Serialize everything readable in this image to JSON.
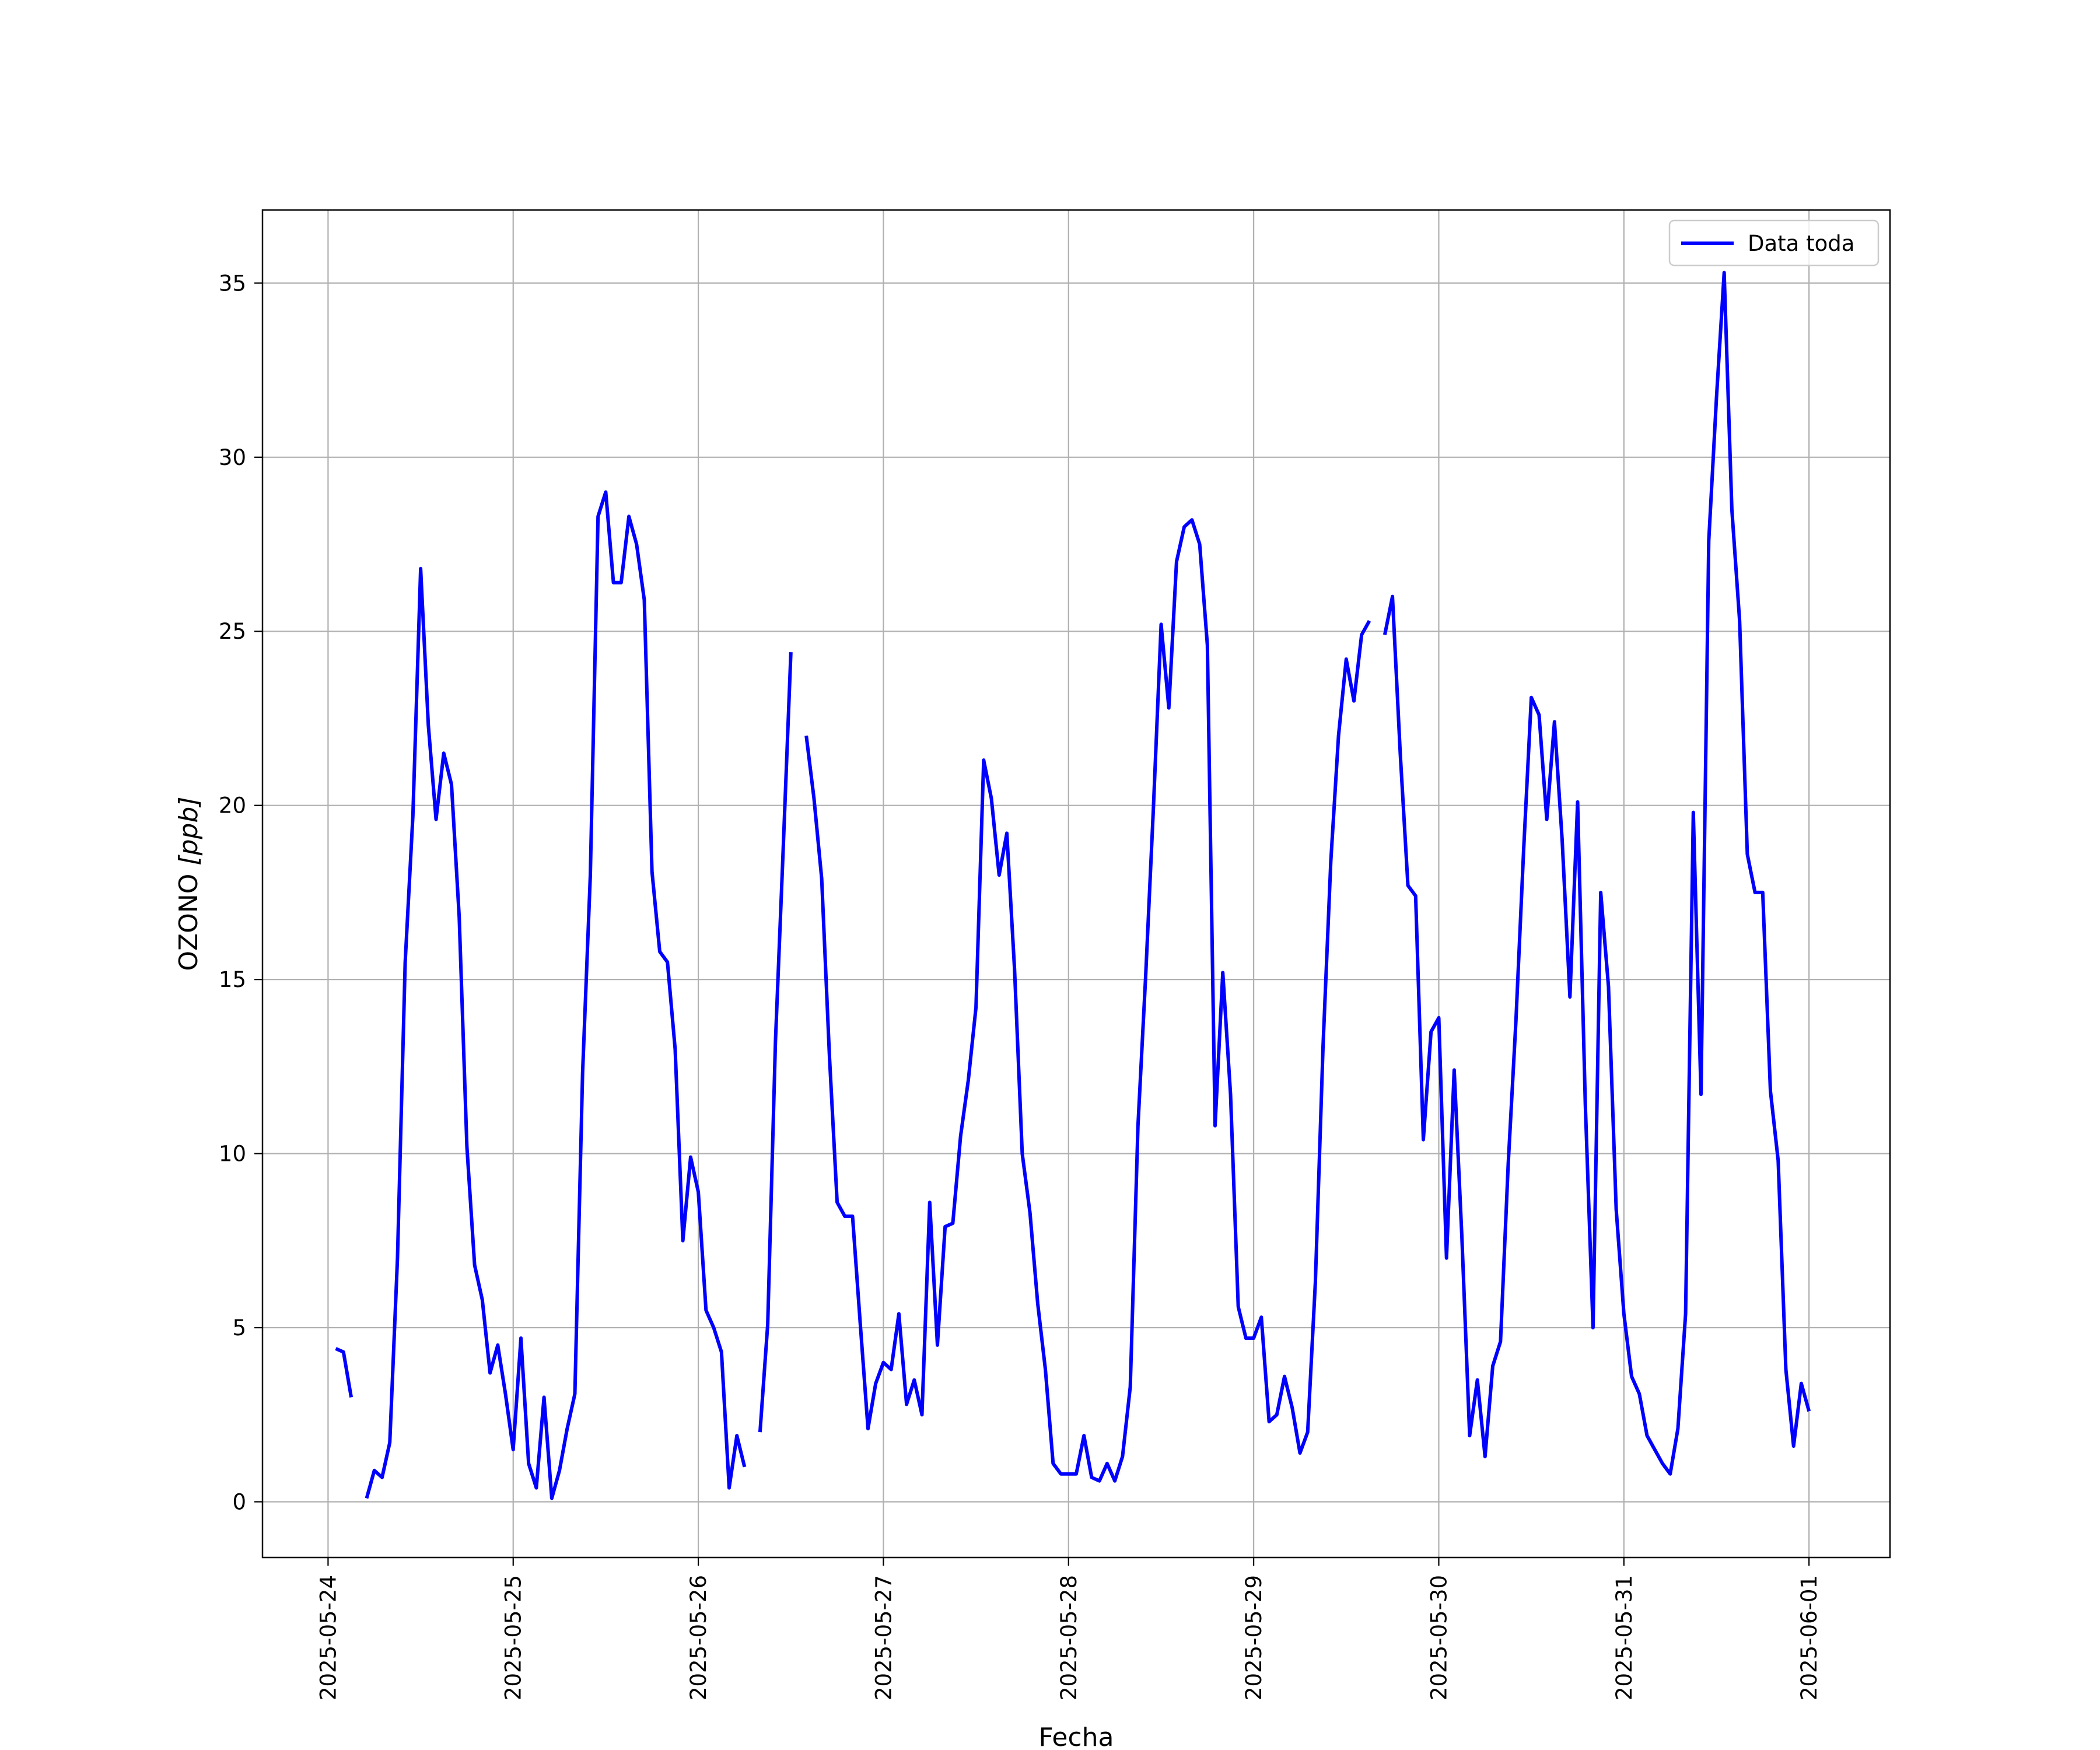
{
  "chart_data": {
    "type": "line",
    "xlabel": "Fecha",
    "ylabel_main": "OZONO ",
    "ylabel_unit": "[ppb]",
    "x_ticks": [
      "2025-05-24",
      "2025-05-25",
      "2025-05-26",
      "2025-05-27",
      "2025-05-28",
      "2025-05-29",
      "2025-05-30",
      "2025-05-31",
      "2025-06-01"
    ],
    "y_ticks": [
      0,
      5,
      10,
      15,
      20,
      25,
      30,
      35
    ],
    "x_range": [
      "2025-05-23 15:30",
      "2025-06-01 10:30"
    ],
    "ylim": [
      -1.6,
      37.1
    ],
    "grid": true,
    "legend_position": "top-right",
    "series": [
      {
        "name": "Data toda",
        "color": "#0000ff",
        "time_step_hours": 1,
        "first_time": "2025-05-24 01:00",
        "values": [
          4.4,
          4.3,
          3.0,
          null,
          0.1,
          0.9,
          0.7,
          1.7,
          7.0,
          15.5,
          19.7,
          26.8,
          22.3,
          19.6,
          21.5,
          20.6,
          16.8,
          10.2,
          6.8,
          5.8,
          3.7,
          4.5,
          3.1,
          1.5,
          4.7,
          1.1,
          0.4,
          3.0,
          0.1,
          0.9,
          2.1,
          3.1,
          12.3,
          18.0,
          28.3,
          29.0,
          26.4,
          26.4,
          28.3,
          27.5,
          25.9,
          18.1,
          15.8,
          15.5,
          13.0,
          7.5,
          9.9,
          8.9,
          5.5,
          5.0,
          4.3,
          0.4,
          1.9,
          1.0,
          null,
          2.0,
          5.1,
          13.2,
          18.7,
          24.4,
          null,
          22.0,
          20.2,
          17.9,
          12.8,
          8.6,
          8.2,
          8.2,
          5.1,
          2.1,
          3.4,
          4.0,
          3.8,
          5.4,
          2.8,
          3.5,
          2.5,
          8.6,
          4.5,
          7.9,
          8.0,
          10.5,
          12.1,
          14.2,
          21.3,
          20.2,
          18.0,
          19.2,
          15.3,
          10.0,
          8.3,
          5.7,
          3.8,
          1.1,
          0.8,
          0.8,
          0.8,
          1.9,
          0.7,
          0.6,
          1.1,
          0.6,
          1.3,
          3.3,
          10.8,
          15.1,
          19.9,
          25.2,
          22.8,
          27.0,
          28.0,
          28.2,
          27.5,
          24.6,
          10.8,
          15.2,
          11.7,
          5.6,
          4.7,
          4.7,
          5.3,
          2.3,
          2.5,
          3.6,
          2.7,
          1.4,
          2.0,
          6.3,
          13.1,
          18.4,
          22.0,
          24.2,
          23.0,
          24.9,
          25.3,
          null,
          24.9,
          26.0,
          21.5,
          17.7,
          17.4,
          10.4,
          13.5,
          13.9,
          7.0,
          12.4,
          7.6,
          1.9,
          3.5,
          1.3,
          3.9,
          4.6,
          9.7,
          13.8,
          18.7,
          23.1,
          22.6,
          19.6,
          22.4,
          19.0,
          14.5,
          20.1,
          11.4,
          5.0,
          17.5,
          14.8,
          8.4,
          5.4,
          3.6,
          3.1,
          1.9,
          1.5,
          1.1,
          0.8,
          2.1,
          5.4,
          19.8,
          11.7,
          27.6,
          31.7,
          35.3,
          28.5,
          25.3,
          18.6,
          17.5,
          17.5,
          11.8,
          9.8,
          3.8,
          1.6,
          3.4,
          2.6
        ]
      }
    ]
  }
}
